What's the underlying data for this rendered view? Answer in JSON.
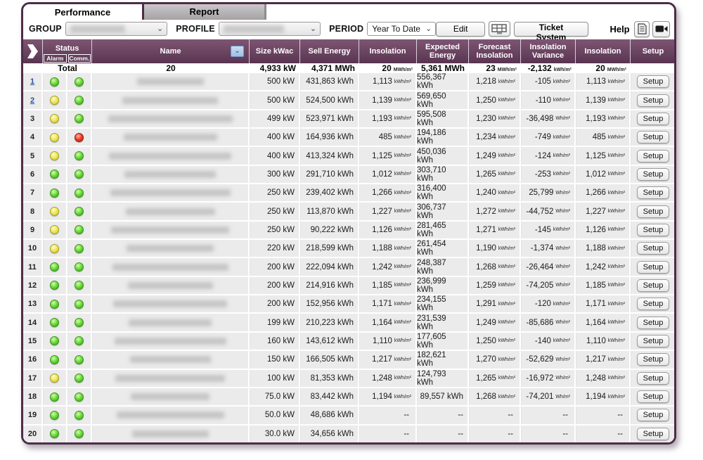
{
  "tabs": {
    "performance": "Performance",
    "report": "Report"
  },
  "toolbar": {
    "group_label": "GROUP",
    "profile_label": "PROFILE",
    "period_label": "PERIOD",
    "period_value": "Year To Date",
    "edit_label": "Edit",
    "ticket_label": "Ticket System",
    "help_label": "Help"
  },
  "table": {
    "headers": {
      "status": "Status",
      "alarm": "Alarm",
      "comm": "Comm.",
      "name": "Name",
      "size": "Size kWac",
      "sell": "Sell Energy",
      "insolation": "Insolation",
      "expected": "Expected Energy",
      "forecast": "Forecast Insolation",
      "variance": "Insolation Variance",
      "insolation2": "Insolation",
      "setup": "Setup"
    },
    "setup_label": "Setup",
    "total": {
      "label": "Total",
      "count": "20",
      "size": "4,933 kW",
      "sell": "4,371 MWh",
      "insolation": {
        "v": "20",
        "u": "MWh/m²"
      },
      "expected": "5,361 MWh",
      "forecast": {
        "v": "23",
        "u": "MWh/m²"
      },
      "variance": {
        "v": "-2,132",
        "u": "kWh/m²"
      },
      "insolation2": {
        "v": "20",
        "u": "MWh/m²"
      }
    },
    "rows": [
      {
        "num": "1",
        "num_link": true,
        "alarm": "green",
        "comm": "green",
        "size": "500 kW",
        "sell": "431,863 kWh",
        "insolation": {
          "v": "1,113",
          "u": "kWh/m²"
        },
        "expected": "556,367 kWh",
        "forecast": {
          "v": "1,218",
          "u": "kWh/m²"
        },
        "variance": {
          "v": "-105",
          "u": "kWh/m²"
        },
        "insolation2": {
          "v": "1,113",
          "u": "kWh/m²"
        }
      },
      {
        "num": "2",
        "num_link": true,
        "alarm": "yellow",
        "comm": "green",
        "size": "500 kW",
        "sell": "524,500 kWh",
        "insolation": {
          "v": "1,139",
          "u": "kWh/m²"
        },
        "expected": "569,650 kWh",
        "forecast": {
          "v": "1,250",
          "u": "kWh/m²"
        },
        "variance": {
          "v": "-110",
          "u": "kWh/m²"
        },
        "insolation2": {
          "v": "1,139",
          "u": "kWh/m²"
        }
      },
      {
        "num": "3",
        "num_link": false,
        "alarm": "yellow",
        "comm": "green",
        "size": "499 kW",
        "sell": "523,971 kWh",
        "insolation": {
          "v": "1,193",
          "u": "kWh/m²"
        },
        "expected": "595,508 kWh",
        "forecast": {
          "v": "1,230",
          "u": "kWh/m²"
        },
        "variance": {
          "v": "-36,498",
          "u": "Wh/m²"
        },
        "insolation2": {
          "v": "1,193",
          "u": "kWh/m²"
        }
      },
      {
        "num": "4",
        "num_link": false,
        "alarm": "yellow",
        "comm": "red",
        "size": "400 kW",
        "sell": "164,936 kWh",
        "insolation": {
          "v": "485",
          "u": "kWh/m²"
        },
        "expected": "194,186 kWh",
        "forecast": {
          "v": "1,234",
          "u": "kWh/m²"
        },
        "variance": {
          "v": "-749",
          "u": "kWh/m²"
        },
        "insolation2": {
          "v": "485",
          "u": "kWh/m²"
        }
      },
      {
        "num": "5",
        "num_link": false,
        "alarm": "yellow",
        "comm": "green",
        "size": "400 kW",
        "sell": "413,324 kWh",
        "insolation": {
          "v": "1,125",
          "u": "kWh/m²"
        },
        "expected": "450,036 kWh",
        "forecast": {
          "v": "1,249",
          "u": "kWh/m²"
        },
        "variance": {
          "v": "-124",
          "u": "kWh/m²"
        },
        "insolation2": {
          "v": "1,125",
          "u": "kWh/m²"
        }
      },
      {
        "num": "6",
        "num_link": false,
        "alarm": "green",
        "comm": "green",
        "size": "300 kW",
        "sell": "291,710 kWh",
        "insolation": {
          "v": "1,012",
          "u": "kWh/m²"
        },
        "expected": "303,710 kWh",
        "forecast": {
          "v": "1,265",
          "u": "kWh/m²"
        },
        "variance": {
          "v": "-253",
          "u": "kWh/m²"
        },
        "insolation2": {
          "v": "1,012",
          "u": "kWh/m²"
        }
      },
      {
        "num": "7",
        "num_link": false,
        "alarm": "green",
        "comm": "green",
        "size": "250 kW",
        "sell": "239,402 kWh",
        "insolation": {
          "v": "1,266",
          "u": "kWh/m²"
        },
        "expected": "316,400 kWh",
        "forecast": {
          "v": "1,240",
          "u": "kWh/m²"
        },
        "variance": {
          "v": "25,799",
          "u": "Wh/m²"
        },
        "insolation2": {
          "v": "1,266",
          "u": "kWh/m²"
        }
      },
      {
        "num": "8",
        "num_link": false,
        "alarm": "yellow",
        "comm": "green",
        "size": "250 kW",
        "sell": "113,870 kWh",
        "insolation": {
          "v": "1,227",
          "u": "kWh/m²"
        },
        "expected": "306,737 kWh",
        "forecast": {
          "v": "1,272",
          "u": "kWh/m²"
        },
        "variance": {
          "v": "-44,752",
          "u": "Wh/m²"
        },
        "insolation2": {
          "v": "1,227",
          "u": "kWh/m²"
        }
      },
      {
        "num": "9",
        "num_link": false,
        "alarm": "yellow",
        "comm": "green",
        "size": "250 kW",
        "sell": "90,222 kWh",
        "insolation": {
          "v": "1,126",
          "u": "kWh/m²"
        },
        "expected": "281,465 kWh",
        "forecast": {
          "v": "1,271",
          "u": "kWh/m²"
        },
        "variance": {
          "v": "-145",
          "u": "kWh/m²"
        },
        "insolation2": {
          "v": "1,126",
          "u": "kWh/m²"
        }
      },
      {
        "num": "10",
        "num_link": false,
        "alarm": "yellow",
        "comm": "green",
        "size": "220 kW",
        "sell": "218,599 kWh",
        "insolation": {
          "v": "1,188",
          "u": "kWh/m²"
        },
        "expected": "261,454 kWh",
        "forecast": {
          "v": "1,190",
          "u": "kWh/m²"
        },
        "variance": {
          "v": "-1,374",
          "u": "Wh/m²"
        },
        "insolation2": {
          "v": "1,188",
          "u": "kWh/m²"
        }
      },
      {
        "num": "11",
        "num_link": false,
        "alarm": "green",
        "comm": "green",
        "size": "200 kW",
        "sell": "222,094 kWh",
        "insolation": {
          "v": "1,242",
          "u": "kWh/m²"
        },
        "expected": "248,387 kWh",
        "forecast": {
          "v": "1,268",
          "u": "kWh/m²"
        },
        "variance": {
          "v": "-26,464",
          "u": "Wh/m²"
        },
        "insolation2": {
          "v": "1,242",
          "u": "kWh/m²"
        }
      },
      {
        "num": "12",
        "num_link": false,
        "alarm": "green",
        "comm": "green",
        "size": "200 kW",
        "sell": "214,916 kWh",
        "insolation": {
          "v": "1,185",
          "u": "kWh/m²"
        },
        "expected": "236,999 kWh",
        "forecast": {
          "v": "1,259",
          "u": "kWh/m²"
        },
        "variance": {
          "v": "-74,205",
          "u": "Wh/m²"
        },
        "insolation2": {
          "v": "1,185",
          "u": "kWh/m²"
        }
      },
      {
        "num": "13",
        "num_link": false,
        "alarm": "green",
        "comm": "green",
        "size": "200 kW",
        "sell": "152,956 kWh",
        "insolation": {
          "v": "1,171",
          "u": "kWh/m²"
        },
        "expected": "234,155 kWh",
        "forecast": {
          "v": "1,291",
          "u": "kWh/m²"
        },
        "variance": {
          "v": "-120",
          "u": "kWh/m²"
        },
        "insolation2": {
          "v": "1,171",
          "u": "kWh/m²"
        }
      },
      {
        "num": "14",
        "num_link": false,
        "alarm": "green",
        "comm": "green",
        "size": "199 kW",
        "sell": "210,223 kWh",
        "insolation": {
          "v": "1,164",
          "u": "kWh/m²"
        },
        "expected": "231,539 kWh",
        "forecast": {
          "v": "1,249",
          "u": "kWh/m²"
        },
        "variance": {
          "v": "-85,686",
          "u": "Wh/m²"
        },
        "insolation2": {
          "v": "1,164",
          "u": "kWh/m²"
        }
      },
      {
        "num": "15",
        "num_link": false,
        "alarm": "green",
        "comm": "green",
        "size": "160 kW",
        "sell": "143,612 kWh",
        "insolation": {
          "v": "1,110",
          "u": "kWh/m²"
        },
        "expected": "177,605 kWh",
        "forecast": {
          "v": "1,250",
          "u": "kWh/m²"
        },
        "variance": {
          "v": "-140",
          "u": "kWh/m²"
        },
        "insolation2": {
          "v": "1,110",
          "u": "kWh/m²"
        }
      },
      {
        "num": "16",
        "num_link": false,
        "alarm": "green",
        "comm": "green",
        "size": "150 kW",
        "sell": "166,505 kWh",
        "insolation": {
          "v": "1,217",
          "u": "kWh/m²"
        },
        "expected": "182,621 kWh",
        "forecast": {
          "v": "1,270",
          "u": "kWh/m²"
        },
        "variance": {
          "v": "-52,629",
          "u": "Wh/m²"
        },
        "insolation2": {
          "v": "1,217",
          "u": "kWh/m²"
        }
      },
      {
        "num": "17",
        "num_link": false,
        "alarm": "yellow",
        "comm": "green",
        "size": "100 kW",
        "sell": "81,353 kWh",
        "insolation": {
          "v": "1,248",
          "u": "kWh/m²"
        },
        "expected": "124,793 kWh",
        "forecast": {
          "v": "1,265",
          "u": "kWh/m²"
        },
        "variance": {
          "v": "-16,972",
          "u": "Wh/m²"
        },
        "insolation2": {
          "v": "1,248",
          "u": "kWh/m²"
        }
      },
      {
        "num": "18",
        "num_link": false,
        "alarm": "green",
        "comm": "green",
        "size": "75.0 kW",
        "sell": "83,442 kWh",
        "insolation": {
          "v": "1,194",
          "u": "kWh/m²"
        },
        "expected": "89,557 kWh",
        "forecast": {
          "v": "1,268",
          "u": "kWh/m²"
        },
        "variance": {
          "v": "-74,201",
          "u": "Wh/m²"
        },
        "insolation2": {
          "v": "1,194",
          "u": "kWh/m²"
        }
      },
      {
        "num": "19",
        "num_link": false,
        "alarm": "green",
        "comm": "green",
        "size": "50.0 kW",
        "sell": "48,686 kWh",
        "insolation": {
          "v": "--",
          "u": ""
        },
        "expected": "--",
        "forecast": {
          "v": "--",
          "u": ""
        },
        "variance": {
          "v": "--",
          "u": ""
        },
        "insolation2": {
          "v": "--",
          "u": ""
        }
      },
      {
        "num": "20",
        "num_link": false,
        "alarm": "green",
        "comm": "green",
        "size": "30.0 kW",
        "sell": "34,656 kWh",
        "insolation": {
          "v": "--",
          "u": ""
        },
        "expected": "--",
        "forecast": {
          "v": "--",
          "u": ""
        },
        "variance": {
          "v": "--",
          "u": ""
        },
        "insolation2": {
          "v": "--",
          "u": ""
        }
      }
    ]
  }
}
